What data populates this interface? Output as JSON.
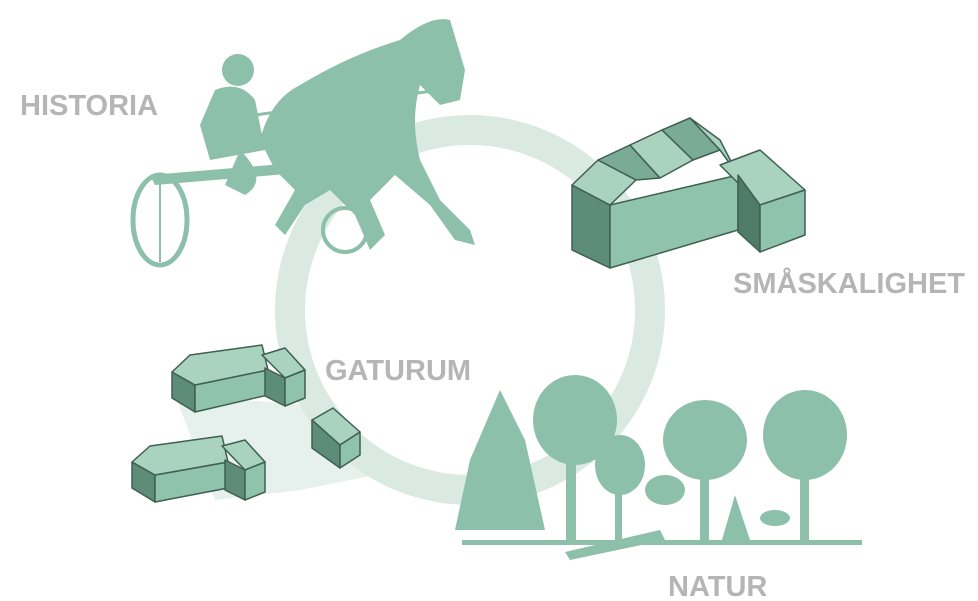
{
  "nodes": [
    {
      "label": "HISTORIA"
    },
    {
      "label": "SMÅSKALIGHET"
    },
    {
      "label": "GATURUM"
    },
    {
      "label": "NATUR"
    }
  ]
}
